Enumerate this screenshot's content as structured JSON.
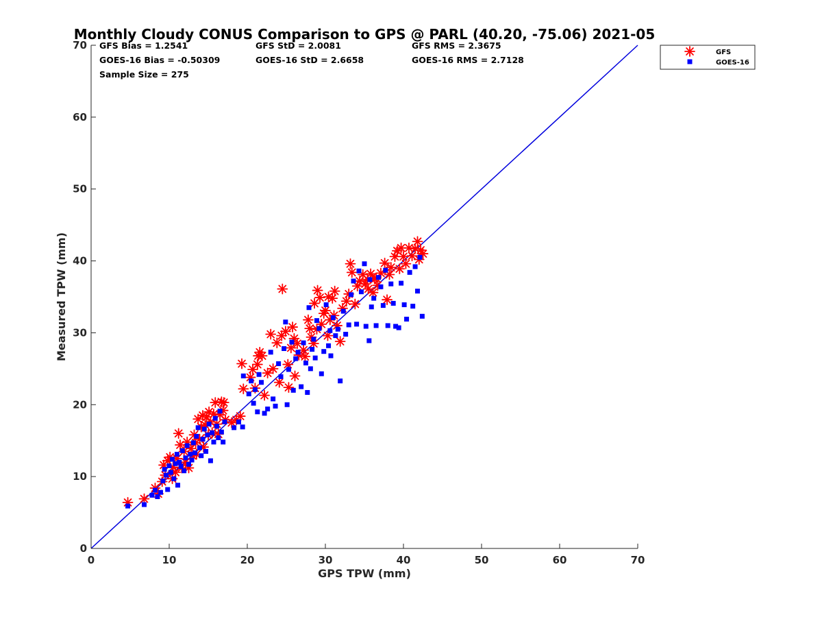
{
  "chart_data": {
    "type": "scatter",
    "title": "Monthly Cloudy CONUS Comparison to GPS @ PARL (40.20, -75.06) 2021-05",
    "xlabel": "GPS TPW (mm)",
    "ylabel": "Measured TPW (mm)",
    "xlim": [
      0,
      70
    ],
    "ylim": [
      0,
      70
    ],
    "xticks": [
      "0",
      "10",
      "20",
      "30",
      "40",
      "50",
      "60",
      "70"
    ],
    "yticks": [
      "0",
      "10",
      "20",
      "30",
      "40",
      "50",
      "60",
      "70"
    ],
    "grid": false,
    "legend_position": "top-right",
    "stats": [
      "GFS Bias = 1.2541",
      "GFS StD = 2.0081",
      "GFS RMS = 2.3675",
      "GOES-16 Bias = -0.50309",
      "GOES-16 StD = 2.6658",
      "GOES-16 RMS = 2.7128",
      "Sample Size = 275"
    ],
    "reference_line": {
      "x": [
        0,
        70
      ],
      "y": [
        0,
        70
      ],
      "color": "#0000dd"
    },
    "series": [
      {
        "name": "GFS",
        "marker": "asterisk",
        "color": "#ff0000",
        "points": [
          [
            4.7,
            6.4
          ],
          [
            6.8,
            6.9
          ],
          [
            8.2,
            8.4
          ],
          [
            8.6,
            7.6
          ],
          [
            9.1,
            9.3
          ],
          [
            9.3,
            11.6
          ],
          [
            9.5,
            10.2
          ],
          [
            9.8,
            12.2
          ],
          [
            10.1,
            12.7
          ],
          [
            10.4,
            9.7
          ],
          [
            10.5,
            11.3
          ],
          [
            10.8,
            10.6
          ],
          [
            11.0,
            12.5
          ],
          [
            11.2,
            16.0
          ],
          [
            11.4,
            14.4
          ],
          [
            11.6,
            11.2
          ],
          [
            11.9,
            13.5
          ],
          [
            12.1,
            12.0
          ],
          [
            12.3,
            14.8
          ],
          [
            12.5,
            11.2
          ],
          [
            12.8,
            13.9
          ],
          [
            13.0,
            12.9
          ],
          [
            13.2,
            15.8
          ],
          [
            13.4,
            14.7
          ],
          [
            13.5,
            13.1
          ],
          [
            13.7,
            18.0
          ],
          [
            13.9,
            15.2
          ],
          [
            14.1,
            16.9
          ],
          [
            14.3,
            18.5
          ],
          [
            14.4,
            14.1
          ],
          [
            14.6,
            17.2
          ],
          [
            14.8,
            18.3
          ],
          [
            15.0,
            15.8
          ],
          [
            15.1,
            19.0
          ],
          [
            15.3,
            17.6
          ],
          [
            15.5,
            16.1
          ],
          [
            15.7,
            18.7
          ],
          [
            15.9,
            20.3
          ],
          [
            16.1,
            17.3
          ],
          [
            16.3,
            15.9
          ],
          [
            16.5,
            18.6
          ],
          [
            16.7,
            20.4
          ],
          [
            16.9,
            19.2
          ],
          [
            17.0,
            20.3
          ],
          [
            17.2,
            17.9
          ],
          [
            18.0,
            17.5
          ],
          [
            18.6,
            17.9
          ],
          [
            19.1,
            18.4
          ],
          [
            19.3,
            25.7
          ],
          [
            19.5,
            22.2
          ],
          [
            20.4,
            23.8
          ],
          [
            20.7,
            24.9
          ],
          [
            21.0,
            22.3
          ],
          [
            21.3,
            25.6
          ],
          [
            21.4,
            26.8
          ],
          [
            21.6,
            27.3
          ],
          [
            21.9,
            26.8
          ],
          [
            22.2,
            21.3
          ],
          [
            22.6,
            24.4
          ],
          [
            23.0,
            29.8
          ],
          [
            23.3,
            25.0
          ],
          [
            23.8,
            28.6
          ],
          [
            24.1,
            23.1
          ],
          [
            24.4,
            29.6
          ],
          [
            24.5,
            36.1
          ],
          [
            24.9,
            30.2
          ],
          [
            25.2,
            25.6
          ],
          [
            25.3,
            22.4
          ],
          [
            25.6,
            27.9
          ],
          [
            25.8,
            30.8
          ],
          [
            26.0,
            29.2
          ],
          [
            26.1,
            24.0
          ],
          [
            26.4,
            28.5
          ],
          [
            26.6,
            26.9
          ],
          [
            27.2,
            27.6
          ],
          [
            27.4,
            26.7
          ],
          [
            27.8,
            31.8
          ],
          [
            28.2,
            29.4
          ],
          [
            28.5,
            28.5
          ],
          [
            28.6,
            34.1
          ],
          [
            28.9,
            30.5
          ],
          [
            29.0,
            35.9
          ],
          [
            29.3,
            34.9
          ],
          [
            29.5,
            31.2
          ],
          [
            29.8,
            32.7
          ],
          [
            30.0,
            33.1
          ],
          [
            30.3,
            29.6
          ],
          [
            30.4,
            35.0
          ],
          [
            30.6,
            31.8
          ],
          [
            30.9,
            34.8
          ],
          [
            31.1,
            32.4
          ],
          [
            31.2,
            35.8
          ],
          [
            31.5,
            31.0
          ],
          [
            31.9,
            28.8
          ],
          [
            32.2,
            33.4
          ],
          [
            32.7,
            34.4
          ],
          [
            33.0,
            35.4
          ],
          [
            33.2,
            39.6
          ],
          [
            33.4,
            38.4
          ],
          [
            33.8,
            34.0
          ],
          [
            34.1,
            36.5
          ],
          [
            34.4,
            37.2
          ],
          [
            34.8,
            38.1
          ],
          [
            35.1,
            36.8
          ],
          [
            35.4,
            37.4
          ],
          [
            35.5,
            36.1
          ],
          [
            35.8,
            38.2
          ],
          [
            36.1,
            35.6
          ],
          [
            36.5,
            37.6
          ],
          [
            36.7,
            36.6
          ],
          [
            37.1,
            38.3
          ],
          [
            37.6,
            39.7
          ],
          [
            37.9,
            34.6
          ],
          [
            38.2,
            38.1
          ],
          [
            38.4,
            39.1
          ],
          [
            38.9,
            40.6
          ],
          [
            39.2,
            41.4
          ],
          [
            39.5,
            38.9
          ],
          [
            39.7,
            41.8
          ],
          [
            40.0,
            40.6
          ],
          [
            40.3,
            39.6
          ],
          [
            40.7,
            41.8
          ],
          [
            41.1,
            40.7
          ],
          [
            41.5,
            41.7
          ],
          [
            41.8,
            42.7
          ],
          [
            42.0,
            40.2
          ],
          [
            42.2,
            41.5
          ],
          [
            42.5,
            41.0
          ],
          [
            36.3,
            37.5
          ],
          [
            28.0,
            30.6
          ]
        ]
      },
      {
        "name": "GOES-16",
        "marker": "square",
        "color": "#0000ff",
        "points": [
          [
            4.7,
            5.9
          ],
          [
            6.8,
            6.1
          ],
          [
            7.8,
            7.4
          ],
          [
            8.2,
            8.1
          ],
          [
            8.5,
            7.2
          ],
          [
            8.9,
            7.8
          ],
          [
            9.2,
            9.4
          ],
          [
            9.4,
            11.0
          ],
          [
            9.6,
            10.2
          ],
          [
            9.8,
            8.2
          ],
          [
            10.0,
            11.5
          ],
          [
            10.2,
            10.6
          ],
          [
            10.4,
            12.4
          ],
          [
            10.6,
            9.7
          ],
          [
            10.8,
            11.8
          ],
          [
            11.0,
            13.1
          ],
          [
            11.1,
            8.8
          ],
          [
            11.3,
            12.0
          ],
          [
            11.5,
            11.4
          ],
          [
            11.7,
            13.6
          ],
          [
            11.9,
            10.8
          ],
          [
            12.1,
            12.6
          ],
          [
            12.3,
            14.3
          ],
          [
            12.5,
            11.7
          ],
          [
            12.7,
            13.1
          ],
          [
            12.9,
            12.3
          ],
          [
            13.1,
            14.7
          ],
          [
            13.3,
            13.3
          ],
          [
            13.5,
            15.6
          ],
          [
            13.7,
            16.8
          ],
          [
            13.9,
            14.0
          ],
          [
            14.1,
            12.9
          ],
          [
            14.3,
            15.2
          ],
          [
            14.5,
            16.6
          ],
          [
            14.7,
            13.5
          ],
          [
            14.9,
            15.8
          ],
          [
            15.1,
            17.3
          ],
          [
            15.3,
            12.2
          ],
          [
            15.5,
            16.1
          ],
          [
            15.7,
            14.8
          ],
          [
            15.9,
            18.1
          ],
          [
            16.1,
            17.0
          ],
          [
            16.3,
            15.4
          ],
          [
            16.5,
            19.1
          ],
          [
            16.7,
            16.2
          ],
          [
            16.9,
            14.8
          ],
          [
            17.1,
            17.6
          ],
          [
            18.3,
            16.8
          ],
          [
            18.9,
            17.6
          ],
          [
            19.4,
            16.9
          ],
          [
            19.5,
            24.0
          ],
          [
            20.2,
            21.5
          ],
          [
            20.5,
            23.3
          ],
          [
            20.8,
            20.2
          ],
          [
            21.0,
            22.1
          ],
          [
            21.3,
            19.0
          ],
          [
            21.5,
            24.2
          ],
          [
            21.8,
            23.1
          ],
          [
            22.2,
            18.8
          ],
          [
            22.6,
            19.4
          ],
          [
            23.0,
            27.3
          ],
          [
            23.3,
            20.8
          ],
          [
            23.6,
            19.8
          ],
          [
            24.0,
            25.7
          ],
          [
            24.3,
            23.9
          ],
          [
            24.7,
            27.8
          ],
          [
            24.9,
            31.5
          ],
          [
            25.1,
            20.0
          ],
          [
            25.3,
            24.9
          ],
          [
            25.7,
            28.7
          ],
          [
            25.9,
            22.0
          ],
          [
            26.2,
            26.4
          ],
          [
            26.5,
            27.3
          ],
          [
            26.9,
            22.5
          ],
          [
            27.2,
            28.6
          ],
          [
            27.5,
            25.8
          ],
          [
            27.7,
            21.7
          ],
          [
            27.9,
            33.5
          ],
          [
            28.1,
            25.0
          ],
          [
            28.3,
            27.7
          ],
          [
            28.5,
            29.1
          ],
          [
            28.7,
            26.5
          ],
          [
            28.9,
            31.7
          ],
          [
            29.2,
            30.6
          ],
          [
            29.5,
            24.3
          ],
          [
            29.8,
            27.4
          ],
          [
            30.1,
            33.9
          ],
          [
            30.4,
            28.2
          ],
          [
            30.7,
            26.8
          ],
          [
            31.0,
            32.1
          ],
          [
            31.3,
            29.6
          ],
          [
            31.6,
            30.5
          ],
          [
            31.9,
            23.3
          ],
          [
            32.3,
            33.0
          ],
          [
            32.6,
            29.8
          ],
          [
            33.0,
            31.1
          ],
          [
            33.3,
            35.3
          ],
          [
            33.6,
            37.2
          ],
          [
            34.0,
            31.2
          ],
          [
            34.3,
            38.6
          ],
          [
            34.6,
            35.7
          ],
          [
            35.0,
            39.6
          ],
          [
            35.2,
            30.9
          ],
          [
            35.6,
            28.9
          ],
          [
            35.9,
            33.6
          ],
          [
            36.2,
            34.8
          ],
          [
            36.5,
            31.0
          ],
          [
            36.8,
            37.7
          ],
          [
            37.1,
            36.4
          ],
          [
            37.4,
            33.8
          ],
          [
            37.7,
            38.7
          ],
          [
            38.0,
            31.0
          ],
          [
            38.4,
            36.8
          ],
          [
            38.7,
            34.1
          ],
          [
            39.0,
            30.9
          ],
          [
            39.4,
            30.7
          ],
          [
            39.7,
            36.9
          ],
          [
            40.1,
            33.9
          ],
          [
            40.4,
            31.9
          ],
          [
            40.8,
            38.4
          ],
          [
            41.2,
            33.7
          ],
          [
            41.5,
            39.2
          ],
          [
            41.8,
            35.8
          ],
          [
            42.1,
            40.5
          ],
          [
            42.4,
            32.3
          ],
          [
            35.7,
            37.4
          ],
          [
            30.6,
            30.3
          ]
        ]
      }
    ]
  }
}
